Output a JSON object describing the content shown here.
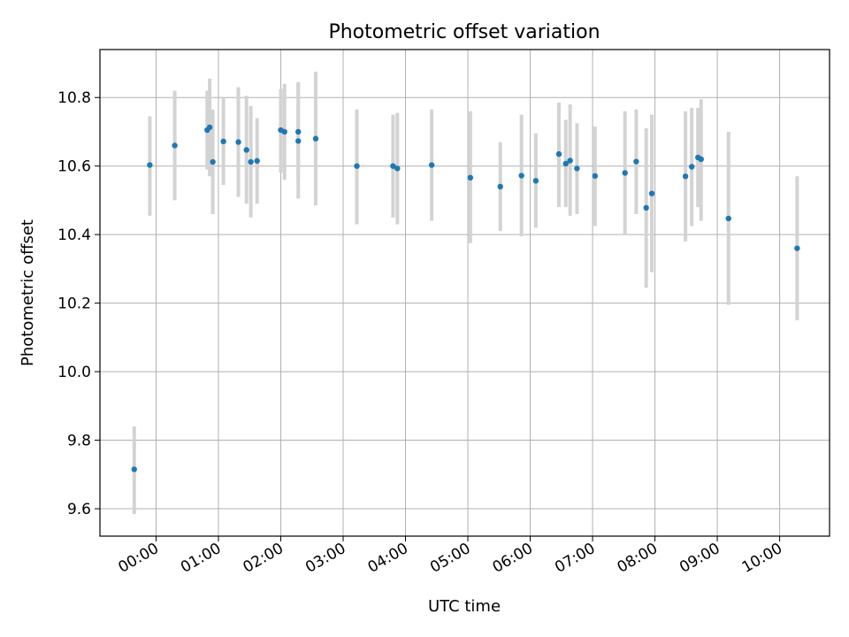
{
  "chart_data": {
    "type": "scatter",
    "title": "Photometric offset variation",
    "xlabel": "UTC time",
    "ylabel": "Photometric offset",
    "x_unit": "hours (UTC)",
    "xlim": [
      -0.9,
      10.8
    ],
    "ylim": [
      9.52,
      10.94
    ],
    "x_ticks": [
      {
        "value": 0,
        "label": "00:00"
      },
      {
        "value": 1,
        "label": "01:00"
      },
      {
        "value": 2,
        "label": "02:00"
      },
      {
        "value": 3,
        "label": "03:00"
      },
      {
        "value": 4,
        "label": "04:00"
      },
      {
        "value": 5,
        "label": "05:00"
      },
      {
        "value": 6,
        "label": "06:00"
      },
      {
        "value": 7,
        "label": "07:00"
      },
      {
        "value": 8,
        "label": "08:00"
      },
      {
        "value": 9,
        "label": "09:00"
      },
      {
        "value": 10,
        "label": "10:00"
      }
    ],
    "y_ticks": [
      {
        "value": 9.6,
        "label": "9.6"
      },
      {
        "value": 9.8,
        "label": "9.8"
      },
      {
        "value": 10.0,
        "label": "10.0"
      },
      {
        "value": 10.2,
        "label": "10.2"
      },
      {
        "value": 10.4,
        "label": "10.4"
      },
      {
        "value": 10.6,
        "label": "10.6"
      },
      {
        "value": 10.8,
        "label": "10.8"
      }
    ],
    "grid": true,
    "point_color": "#1f77b4",
    "errorbar_color": "#d3d3d3",
    "points": [
      {
        "x": -0.35,
        "y": 9.715,
        "lo": 9.585,
        "hi": 9.84
      },
      {
        "x": -0.1,
        "y": 10.603,
        "lo": 10.455,
        "hi": 10.745
      },
      {
        "x": 0.3,
        "y": 10.66,
        "lo": 10.5,
        "hi": 10.82
      },
      {
        "x": 0.82,
        "y": 10.705,
        "lo": 10.59,
        "hi": 10.82
      },
      {
        "x": 0.86,
        "y": 10.713,
        "lo": 10.57,
        "hi": 10.855
      },
      {
        "x": 0.91,
        "y": 10.612,
        "lo": 10.46,
        "hi": 10.765
      },
      {
        "x": 1.08,
        "y": 10.672,
        "lo": 10.545,
        "hi": 10.8
      },
      {
        "x": 1.32,
        "y": 10.67,
        "lo": 10.51,
        "hi": 10.83
      },
      {
        "x": 1.45,
        "y": 10.647,
        "lo": 10.49,
        "hi": 10.805
      },
      {
        "x": 1.52,
        "y": 10.612,
        "lo": 10.45,
        "hi": 10.775
      },
      {
        "x": 1.62,
        "y": 10.615,
        "lo": 10.49,
        "hi": 10.74
      },
      {
        "x": 2.0,
        "y": 10.705,
        "lo": 10.58,
        "hi": 10.825
      },
      {
        "x": 2.06,
        "y": 10.7,
        "lo": 10.56,
        "hi": 10.84
      },
      {
        "x": 2.28,
        "y": 10.673,
        "lo": 10.505,
        "hi": 10.845
      },
      {
        "x": 2.28,
        "y": 10.7,
        "lo": 10.56,
        "hi": 10.84
      },
      {
        "x": 2.56,
        "y": 10.68,
        "lo": 10.485,
        "hi": 10.875
      },
      {
        "x": 3.22,
        "y": 10.6,
        "lo": 10.43,
        "hi": 10.765
      },
      {
        "x": 3.8,
        "y": 10.6,
        "lo": 10.45,
        "hi": 10.75
      },
      {
        "x": 3.87,
        "y": 10.593,
        "lo": 10.43,
        "hi": 10.755
      },
      {
        "x": 4.42,
        "y": 10.603,
        "lo": 10.44,
        "hi": 10.765
      },
      {
        "x": 5.04,
        "y": 10.566,
        "lo": 10.375,
        "hi": 10.76
      },
      {
        "x": 5.52,
        "y": 10.54,
        "lo": 10.41,
        "hi": 10.67
      },
      {
        "x": 5.86,
        "y": 10.572,
        "lo": 10.395,
        "hi": 10.75
      },
      {
        "x": 6.09,
        "y": 10.557,
        "lo": 10.42,
        "hi": 10.695
      },
      {
        "x": 6.46,
        "y": 10.635,
        "lo": 10.48,
        "hi": 10.785
      },
      {
        "x": 6.57,
        "y": 10.607,
        "lo": 10.48,
        "hi": 10.735
      },
      {
        "x": 6.64,
        "y": 10.616,
        "lo": 10.455,
        "hi": 10.78
      },
      {
        "x": 6.75,
        "y": 10.593,
        "lo": 10.46,
        "hi": 10.725
      },
      {
        "x": 7.04,
        "y": 10.571,
        "lo": 10.425,
        "hi": 10.715
      },
      {
        "x": 7.52,
        "y": 10.58,
        "lo": 10.4,
        "hi": 10.76
      },
      {
        "x": 7.7,
        "y": 10.613,
        "lo": 10.46,
        "hi": 10.765
      },
      {
        "x": 7.86,
        "y": 10.478,
        "lo": 10.245,
        "hi": 10.71
      },
      {
        "x": 7.95,
        "y": 10.52,
        "lo": 10.29,
        "hi": 10.75
      },
      {
        "x": 8.49,
        "y": 10.57,
        "lo": 10.38,
        "hi": 10.76
      },
      {
        "x": 8.59,
        "y": 10.598,
        "lo": 10.425,
        "hi": 10.77
      },
      {
        "x": 8.69,
        "y": 10.625,
        "lo": 10.48,
        "hi": 10.77
      },
      {
        "x": 8.74,
        "y": 10.62,
        "lo": 10.44,
        "hi": 10.795
      },
      {
        "x": 9.18,
        "y": 10.447,
        "lo": 10.195,
        "hi": 10.7
      },
      {
        "x": 10.28,
        "y": 10.36,
        "lo": 10.15,
        "hi": 10.57
      }
    ]
  }
}
